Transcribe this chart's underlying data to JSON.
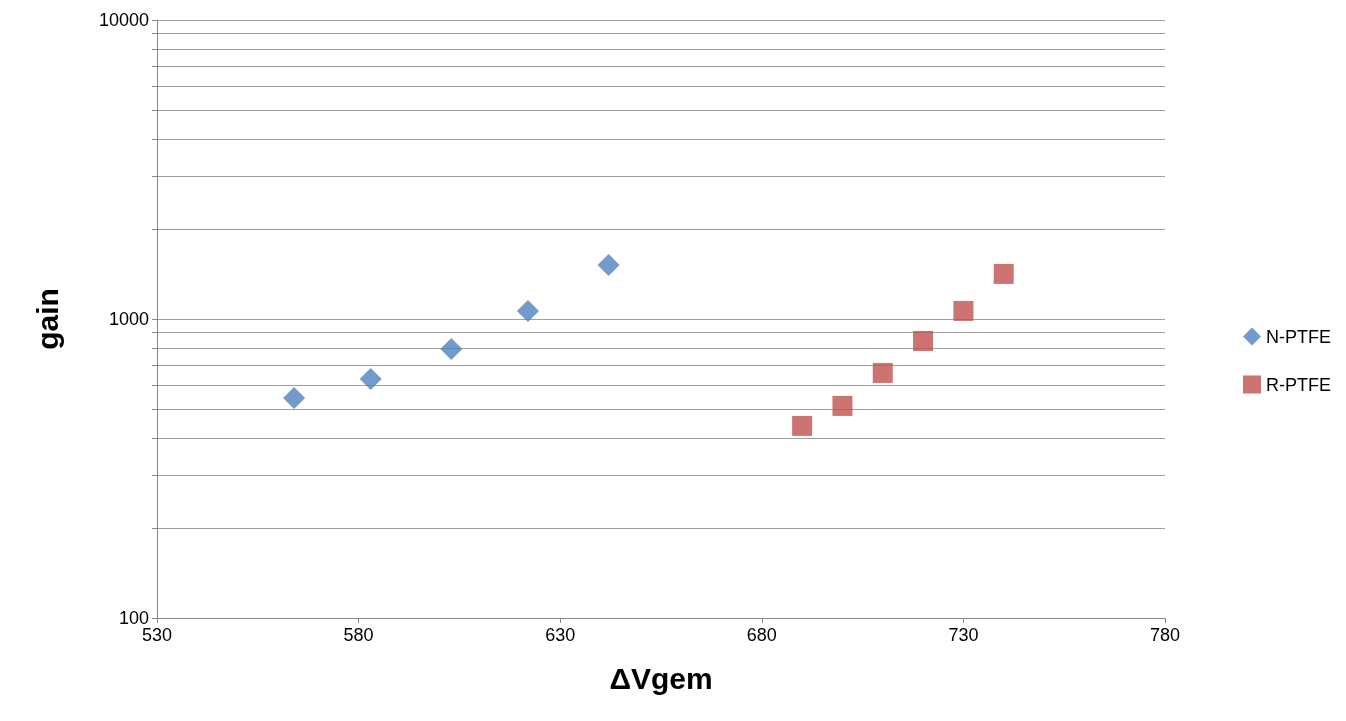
{
  "chart_data": {
    "type": "scatter",
    "xlabel": "ΔVgem",
    "ylabel": "gain",
    "log": "y",
    "xlim": [
      530,
      780
    ],
    "xticks": [
      530,
      580,
      630,
      680,
      730,
      780
    ],
    "ylim": [
      100,
      10000
    ],
    "yticks": [
      100,
      {
        "value": 200,
        "label": null
      },
      {
        "value": 300,
        "label": null
      },
      {
        "value": 400,
        "label": null
      },
      {
        "value": 500,
        "label": null
      },
      {
        "value": 600,
        "label": null
      },
      {
        "value": 700,
        "label": null
      },
      {
        "value": 800,
        "label": null
      },
      {
        "value": 900,
        "label": null
      },
      1000,
      {
        "value": 2000,
        "label": null
      },
      {
        "value": 3000,
        "label": null
      },
      {
        "value": 4000,
        "label": null
      },
      {
        "value": 5000,
        "label": null
      },
      {
        "value": 6000,
        "label": null
      },
      {
        "value": 7000,
        "label": null
      },
      {
        "value": 8000,
        "label": null
      },
      {
        "value": 9000,
        "label": null
      },
      10000
    ],
    "grid": "y",
    "legend": "right",
    "series": [
      {
        "name": "N-PTFE",
        "color": "#4f81bd",
        "marker": "diamond",
        "x": [
          564,
          583,
          603,
          622,
          642
        ],
        "values": [
          544,
          630,
          794,
          1064,
          1516
        ]
      },
      {
        "name": "R-PTFE",
        "color": "#c0504d",
        "marker": "square",
        "x": [
          690,
          700,
          710,
          720,
          730,
          740
        ],
        "values": [
          439,
          512,
          660,
          844,
          1064,
          1415
        ]
      }
    ]
  }
}
